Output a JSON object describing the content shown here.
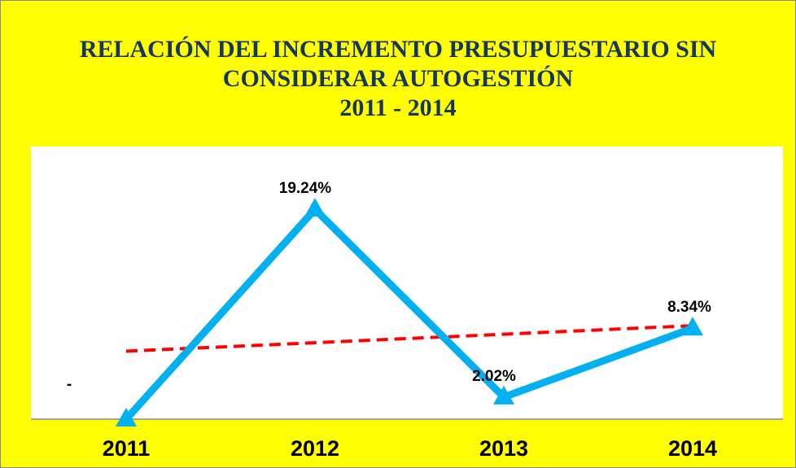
{
  "chart_data": {
    "type": "line",
    "title": [
      "RELACIÓN DEL INCREMENTO  PRESUPUESTARIO SIN",
      "CONSIDERAR AUTOGESTIÓN",
      "2011 - 2014"
    ],
    "categories": [
      "2011",
      "2012",
      "2013",
      "2014"
    ],
    "series": [
      {
        "color": "#00b0f0",
        "values": [
          0,
          19.24,
          2.02,
          8.34
        ],
        "value_labels": [
          "-",
          "19.24%",
          "2.02%",
          "8.34%"
        ]
      }
    ],
    "trendline": {
      "type": "linear",
      "color": "#ff0000"
    },
    "ylim": [
      0,
      25
    ]
  }
}
